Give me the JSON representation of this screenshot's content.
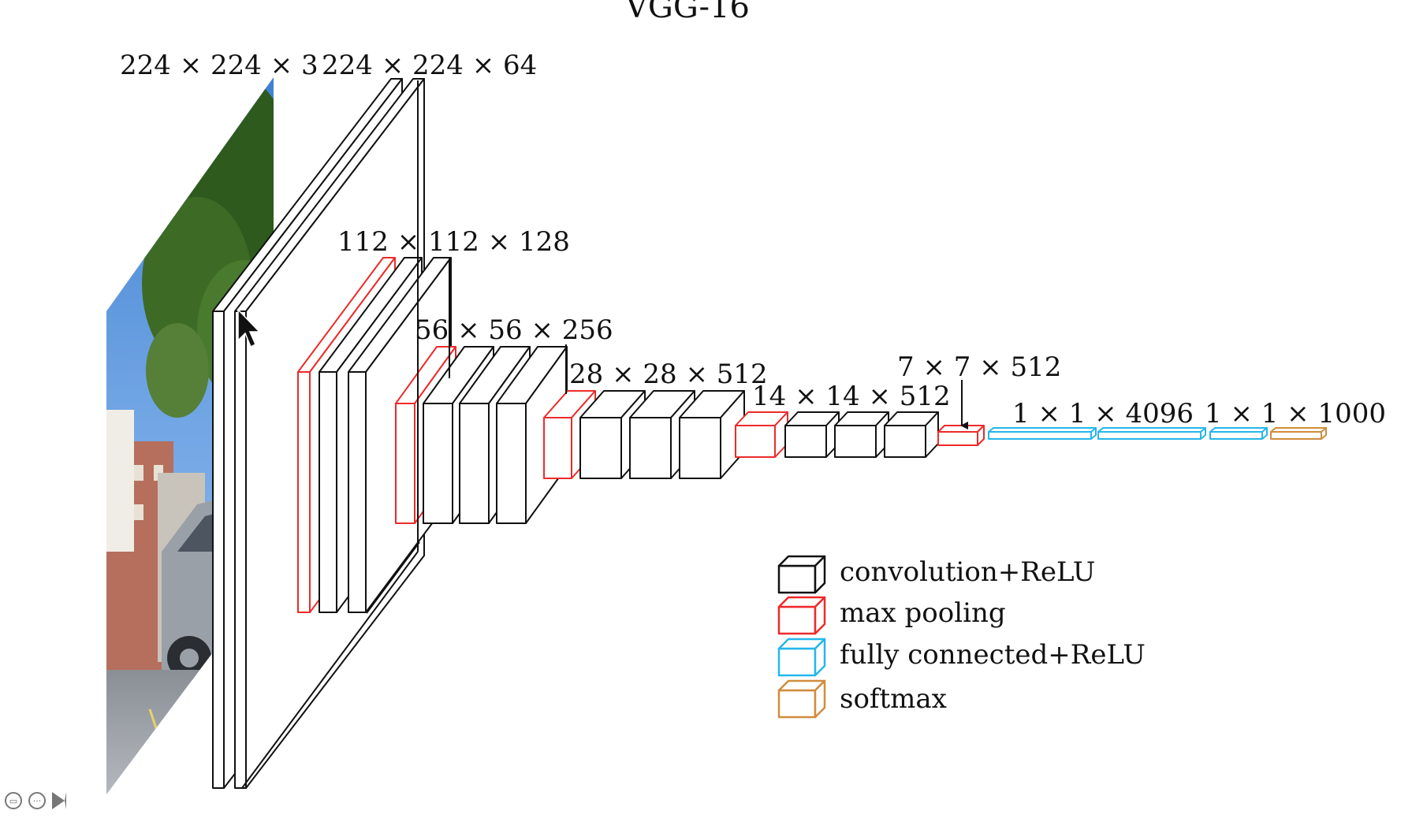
{
  "title": "VGG-16",
  "colors": {
    "conv": "#111111",
    "pool": "#ee2a2a",
    "fc": "#25b7ea",
    "softmax": "#d08c3c"
  },
  "dimension_labels": [
    "224 × 224 × 3",
    "224 × 224 × 64",
    "112 × 112 × 128",
    "56 × 56 × 256",
    "28 × 28 × 512",
    "14 × 14 × 512",
    "7 × 7 × 512",
    "1 × 1 × 4096",
    "1 × 1 × 1000"
  ],
  "legend": [
    {
      "key": "conv",
      "label": "convolution+ReLU"
    },
    {
      "key": "pool",
      "label": "max pooling"
    },
    {
      "key": "fc",
      "label": "fully connected+ReLU"
    },
    {
      "key": "softmax",
      "label": "softmax"
    }
  ],
  "icons": {
    "cursor": "mouse-pointer-icon",
    "controls": [
      "subtitle-icon",
      "more-options-icon",
      "next-slide-icon"
    ]
  }
}
